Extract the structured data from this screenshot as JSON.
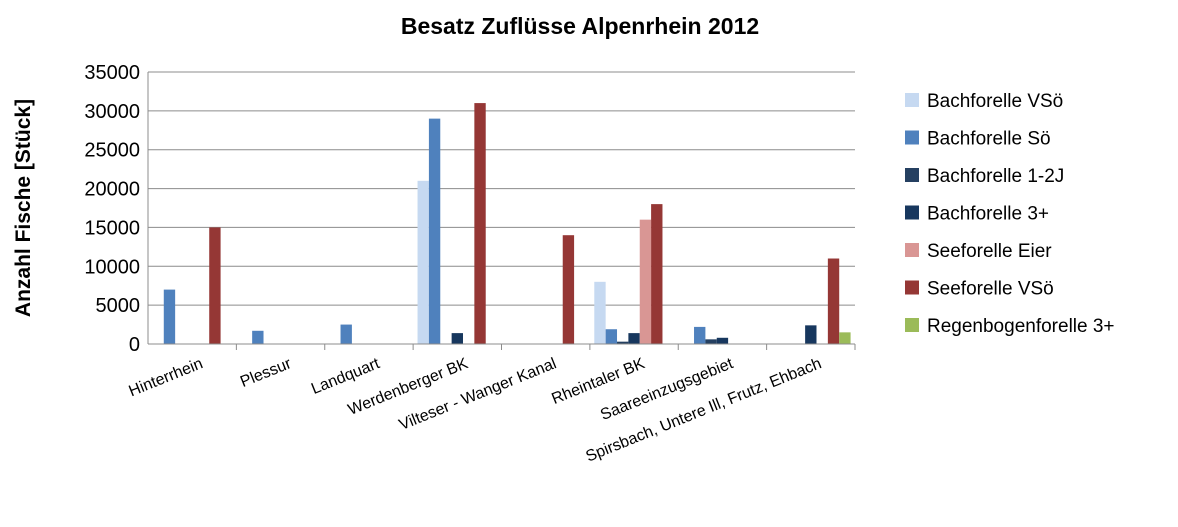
{
  "chart_data": {
    "type": "bar",
    "title": "Besatz Zuflüsse Alpenrhein 2012",
    "y_label": "Anzahl Fische [Stück]",
    "categories": [
      "Hinterrhein",
      "Plessur",
      "Landquart",
      "Werdenberger BK",
      "Vilteser - Wanger Kanal",
      "Rheintaler BK",
      "Saareeinzugsgebiet",
      "Spirsbach, Untere Ill, Frutz, Ehbach"
    ],
    "series": [
      {
        "name": "Bachforelle VSö",
        "color": "#c6d9f1",
        "values": [
          0,
          0,
          0,
          21000,
          0,
          8000,
          0,
          0
        ]
      },
      {
        "name": "Bachforelle Sö",
        "color": "#4f81bd",
        "values": [
          7000,
          1700,
          2500,
          29000,
          0,
          1900,
          2200,
          0
        ]
      },
      {
        "name": "Bachforelle 1-2J",
        "color": "#254061",
        "values": [
          0,
          0,
          0,
          0,
          0,
          300,
          600,
          0
        ]
      },
      {
        "name": "Bachforelle 3+",
        "color": "#17375e",
        "values": [
          0,
          0,
          0,
          1400,
          0,
          1400,
          800,
          2400
        ]
      },
      {
        "name": "Seeforelle Eier",
        "color": "#d99694",
        "values": [
          0,
          0,
          0,
          0,
          0,
          16000,
          0,
          0
        ]
      },
      {
        "name": "Seeforelle VSö",
        "color": "#953735",
        "values": [
          15000,
          0,
          0,
          31000,
          14000,
          18000,
          0,
          11000
        ]
      },
      {
        "name": "Regenbogenforelle 3+",
        "color": "#9bbb59",
        "values": [
          0,
          0,
          0,
          0,
          0,
          0,
          0,
          1500
        ]
      }
    ],
    "ylim": [
      0,
      35000
    ],
    "yticks": [
      0,
      5000,
      10000,
      15000,
      20000,
      25000,
      30000,
      35000
    ],
    "grid": true,
    "legend": "right"
  }
}
